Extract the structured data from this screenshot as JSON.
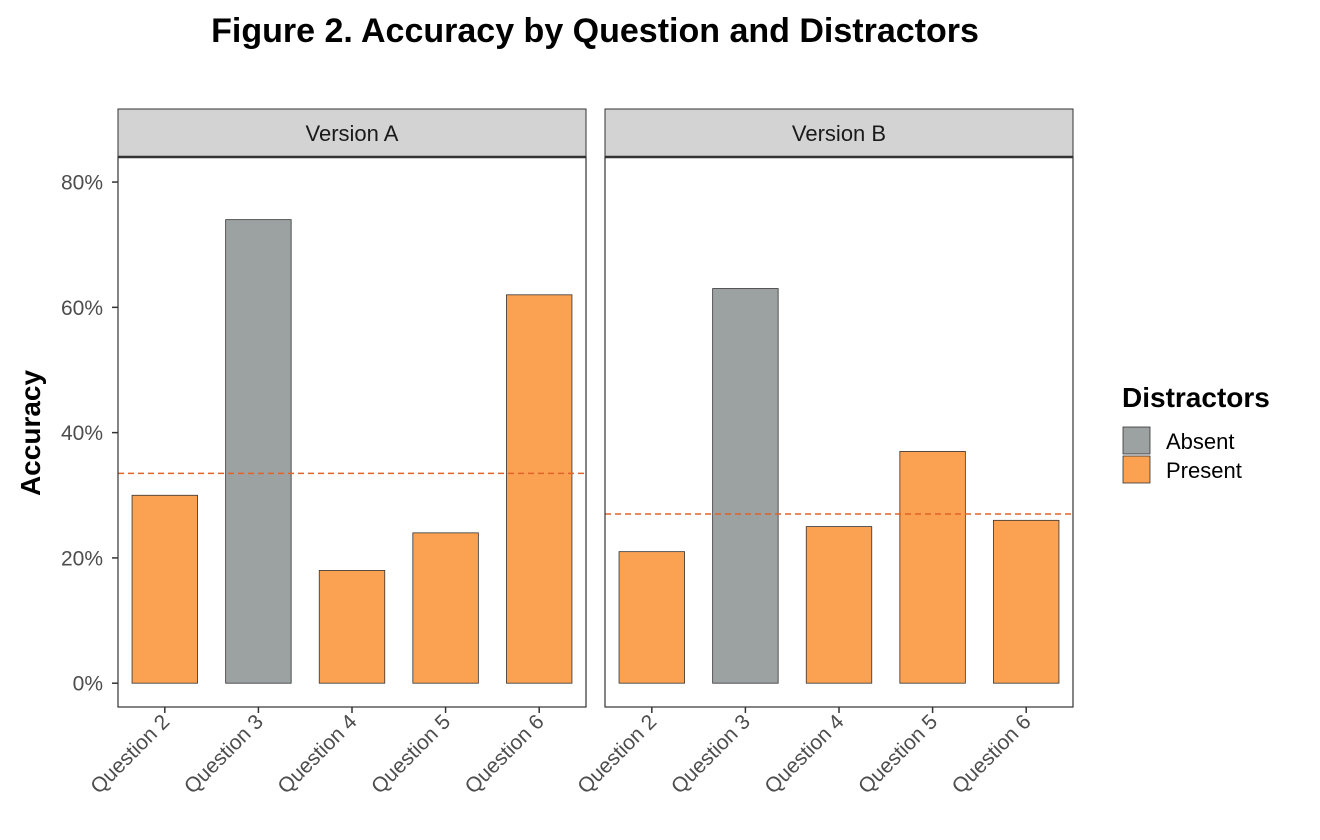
{
  "chart_data": {
    "type": "bar",
    "title": "Figure 2. Accuracy by Question and Distractors",
    "ylabel": "Accuracy",
    "xlabel": "",
    "ylim": [
      -0.038,
      0.84
    ],
    "yticks": [
      0,
      0.2,
      0.4,
      0.6,
      0.8
    ],
    "ytick_labels": [
      "0%",
      "20%",
      "40%",
      "60%",
      "80%"
    ],
    "categories": [
      "Question 2",
      "Question 3",
      "Question 4",
      "Question 5",
      "Question 6"
    ],
    "legend": {
      "title": "Distractors",
      "position": "right",
      "items": [
        {
          "label": "Absent",
          "color": "#9ca1a1"
        },
        {
          "label": "Present",
          "color": "#fba152"
        }
      ]
    },
    "reference_line_color": "#e0632a",
    "grid": false,
    "panels": [
      {
        "strip": "Version A",
        "values": [
          0.3,
          0.74,
          0.18,
          0.24,
          0.62
        ],
        "distractors": [
          "Present",
          "Absent",
          "Present",
          "Present",
          "Present"
        ],
        "reference_line": 0.335
      },
      {
        "strip": "Version B",
        "values": [
          0.21,
          0.63,
          0.25,
          0.37,
          0.26
        ],
        "distractors": [
          "Present",
          "Absent",
          "Present",
          "Present",
          "Present"
        ],
        "reference_line": 0.27
      }
    ]
  }
}
